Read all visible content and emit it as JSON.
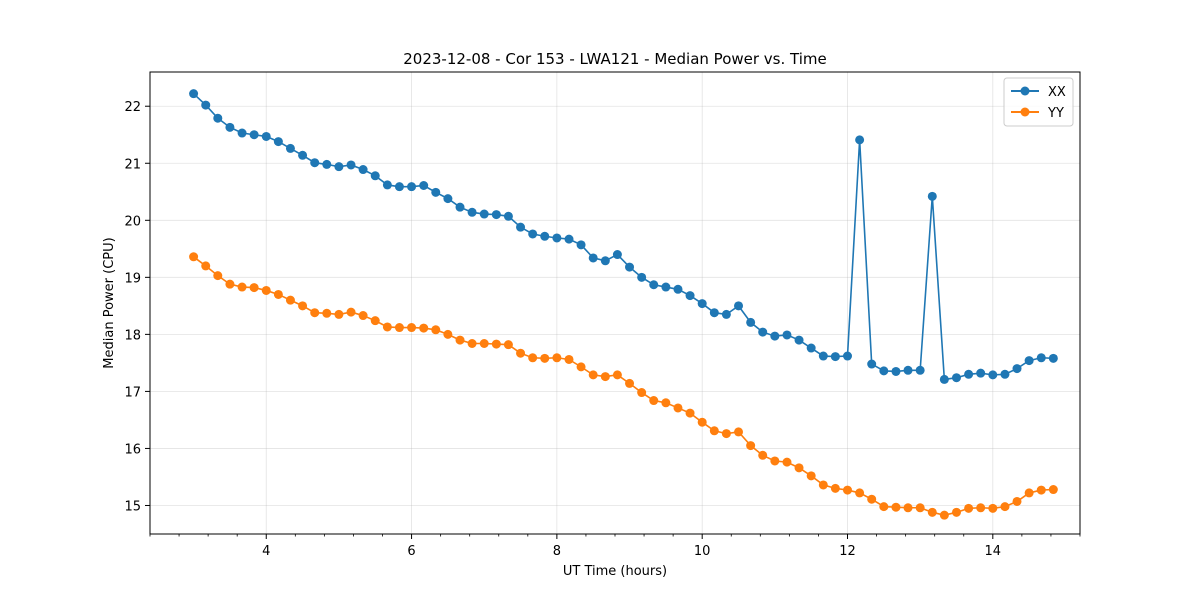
{
  "chart_data": {
    "type": "line",
    "title": "2023-12-08 - Cor 153 - LWA121 - Median Power vs. Time",
    "xlabel": "UT Time (hours)",
    "ylabel": "Median Power (CPU)",
    "xlim": [
      2.4,
      15.2
    ],
    "ylim": [
      14.5,
      22.6
    ],
    "xticks": [
      4,
      6,
      8,
      10,
      12,
      14
    ],
    "xticks_labels": [
      "4",
      "6",
      "8",
      "10",
      "12",
      "14"
    ],
    "yticks": [
      15,
      16,
      17,
      18,
      19,
      20,
      21,
      22
    ],
    "yticks_labels": [
      "15",
      "16",
      "17",
      "18",
      "19",
      "20",
      "21",
      "22"
    ],
    "grid": true,
    "legend": "top-right",
    "x": [
      3.0,
      3.167,
      3.333,
      3.5,
      3.667,
      3.833,
      4.0,
      4.167,
      4.333,
      4.5,
      4.667,
      4.833,
      5.0,
      5.167,
      5.333,
      5.5,
      5.667,
      5.833,
      6.0,
      6.167,
      6.333,
      6.5,
      6.667,
      6.833,
      7.0,
      7.167,
      7.333,
      7.5,
      7.667,
      7.833,
      8.0,
      8.167,
      8.333,
      8.5,
      8.667,
      8.833,
      9.0,
      9.167,
      9.333,
      9.5,
      9.667,
      9.833,
      10.0,
      10.167,
      10.333,
      10.5,
      10.667,
      10.833,
      11.0,
      11.167,
      11.333,
      11.5,
      11.667,
      11.833,
      12.0,
      12.167,
      12.333,
      12.5,
      12.667,
      12.833,
      13.0,
      13.167,
      13.333,
      13.5,
      13.667,
      13.833,
      14.0,
      14.167,
      14.333,
      14.5,
      14.667,
      14.833
    ],
    "series": [
      {
        "name": "XX",
        "color": "#1f77b4",
        "values": [
          22.22,
          22.02,
          21.79,
          21.63,
          21.53,
          21.5,
          21.47,
          21.38,
          21.26,
          21.14,
          21.01,
          20.98,
          20.94,
          20.97,
          20.89,
          20.78,
          20.62,
          20.59,
          20.59,
          20.61,
          20.49,
          20.38,
          20.23,
          20.14,
          20.11,
          20.1,
          20.07,
          19.88,
          19.76,
          19.72,
          19.69,
          19.67,
          19.57,
          19.34,
          19.29,
          19.4,
          19.18,
          19.0,
          18.87,
          18.83,
          18.79,
          18.68,
          18.54,
          18.38,
          18.35,
          18.5,
          18.21,
          18.04,
          17.97,
          17.99,
          17.9,
          17.76,
          17.62,
          17.61,
          17.62,
          21.41,
          17.48,
          17.36,
          17.35,
          17.37,
          17.37,
          20.42,
          17.21,
          17.24,
          17.3,
          17.32,
          17.29,
          17.3,
          17.4,
          17.54,
          17.59,
          17.58
        ]
      },
      {
        "name": "YY",
        "color": "#ff7f0e",
        "values": [
          19.36,
          19.2,
          19.03,
          18.88,
          18.83,
          18.82,
          18.77,
          18.7,
          18.6,
          18.5,
          18.38,
          18.37,
          18.35,
          18.39,
          18.33,
          18.24,
          18.13,
          18.12,
          18.12,
          18.11,
          18.08,
          18.0,
          17.9,
          17.84,
          17.84,
          17.83,
          17.82,
          17.67,
          17.59,
          17.58,
          17.59,
          17.56,
          17.43,
          17.29,
          17.26,
          17.29,
          17.14,
          16.98,
          16.84,
          16.8,
          16.71,
          16.62,
          16.46,
          16.31,
          16.26,
          16.29,
          16.05,
          15.88,
          15.78,
          15.76,
          15.66,
          15.52,
          15.36,
          15.3,
          15.27,
          15.22,
          15.11,
          14.98,
          14.97,
          14.96,
          14.96,
          14.88,
          14.83,
          14.88,
          14.95,
          14.96,
          14.95,
          14.98,
          15.07,
          15.22,
          15.27,
          15.28
        ]
      }
    ]
  }
}
